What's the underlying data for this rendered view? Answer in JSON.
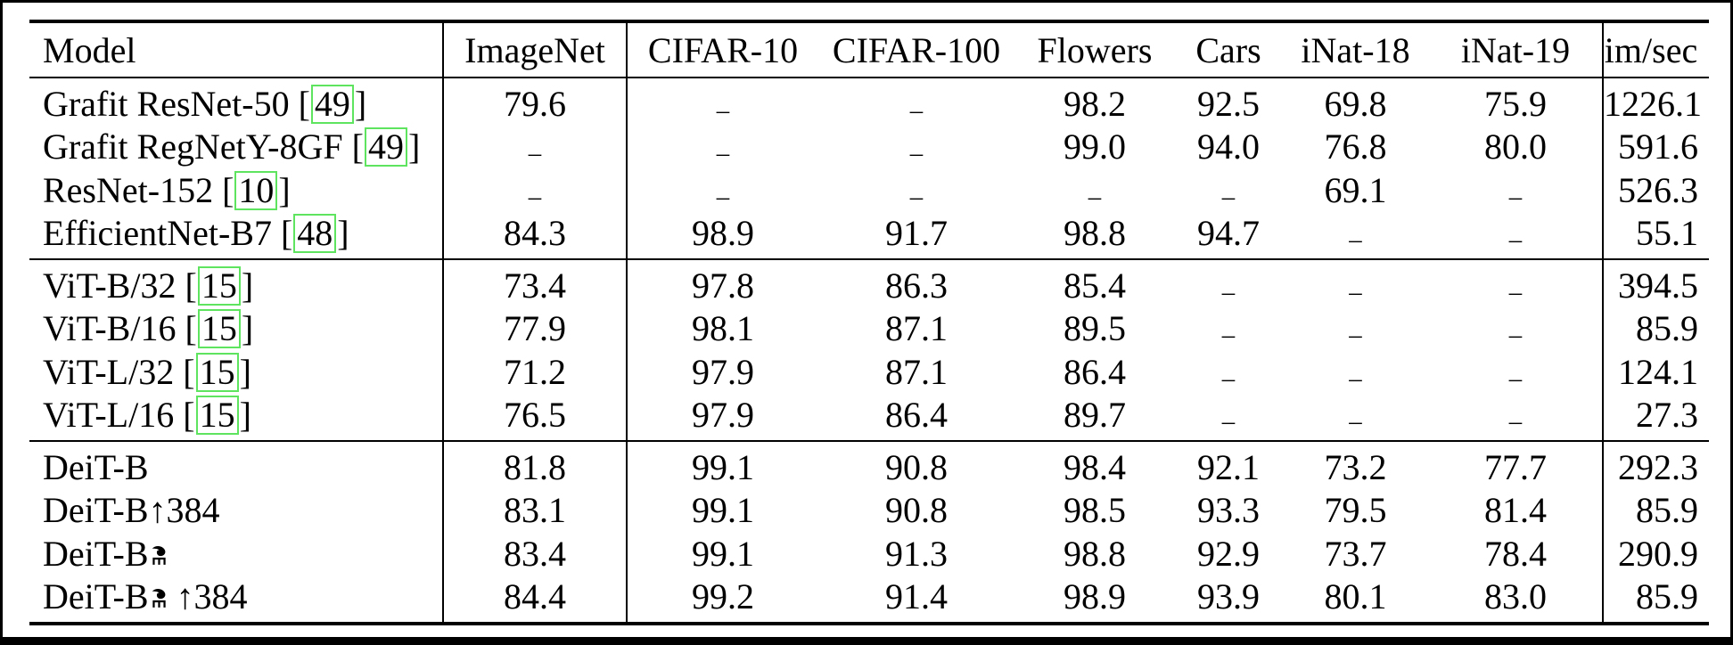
{
  "table": {
    "columns": [
      {
        "key": "model",
        "label": "Model"
      },
      {
        "key": "imagenet",
        "label": "ImageNet"
      },
      {
        "key": "cifar10",
        "label": "CIFAR-10"
      },
      {
        "key": "cifar100",
        "label": "CIFAR-100"
      },
      {
        "key": "flowers",
        "label": "Flowers"
      },
      {
        "key": "cars",
        "label": "Cars"
      },
      {
        "key": "inat18",
        "label": "iNat-18"
      },
      {
        "key": "inat19",
        "label": "iNat-19"
      },
      {
        "key": "imsec",
        "label": "im/sec"
      }
    ],
    "missing_marker": "–",
    "cite_box_color": "#5fe45f",
    "groups": [
      {
        "name": "convnets",
        "rows": [
          {
            "model": {
              "text": "Grafit ResNet-50",
              "cite": "49",
              "alembic": false,
              "suffix": ""
            },
            "values": [
              "79.6",
              "–",
              "–",
              "98.2",
              "92.5",
              "69.8",
              "75.9",
              "1226.1"
            ]
          },
          {
            "model": {
              "text": "Grafit RegNetY-8GF",
              "cite": "49",
              "alembic": false,
              "suffix": ""
            },
            "values": [
              "–",
              "–",
              "–",
              "99.0",
              "94.0",
              "76.8",
              "80.0",
              "591.6"
            ]
          },
          {
            "model": {
              "text": "ResNet-152",
              "cite": "10",
              "alembic": false,
              "suffix": ""
            },
            "values": [
              "–",
              "–",
              "–",
              "–",
              "–",
              "69.1",
              "–",
              "526.3"
            ]
          },
          {
            "model": {
              "text": "EfficientNet-B7",
              "cite": "48",
              "alembic": false,
              "suffix": ""
            },
            "values": [
              "84.3",
              "98.9",
              "91.7",
              "98.8",
              "94.7",
              "–",
              "–",
              "55.1"
            ]
          }
        ]
      },
      {
        "name": "vit",
        "rows": [
          {
            "model": {
              "text": "ViT-B/32",
              "cite": "15",
              "alembic": false,
              "suffix": ""
            },
            "values": [
              "73.4",
              "97.8",
              "86.3",
              "85.4",
              "–",
              "–",
              "–",
              "394.5"
            ]
          },
          {
            "model": {
              "text": "ViT-B/16",
              "cite": "15",
              "alembic": false,
              "suffix": ""
            },
            "values": [
              "77.9",
              "98.1",
              "87.1",
              "89.5",
              "–",
              "–",
              "–",
              "85.9"
            ]
          },
          {
            "model": {
              "text": "ViT-L/32",
              "cite": "15",
              "alembic": false,
              "suffix": ""
            },
            "values": [
              "71.2",
              "97.9",
              "87.1",
              "86.4",
              "–",
              "–",
              "–",
              "124.1"
            ]
          },
          {
            "model": {
              "text": "ViT-L/16",
              "cite": "15",
              "alembic": false,
              "suffix": ""
            },
            "values": [
              "76.5",
              "97.9",
              "86.4",
              "89.7",
              "–",
              "–",
              "–",
              "27.3"
            ]
          }
        ]
      },
      {
        "name": "deit",
        "rows": [
          {
            "model": {
              "text": "DeiT-B",
              "cite": null,
              "alembic": false,
              "suffix": ""
            },
            "values": [
              "81.8",
              "99.1",
              "90.8",
              "98.4",
              "92.1",
              "73.2",
              "77.7",
              "292.3"
            ]
          },
          {
            "model": {
              "text": "DeiT-B",
              "cite": null,
              "alembic": false,
              "suffix": "↑384"
            },
            "values": [
              "83.1",
              "99.1",
              "90.8",
              "98.5",
              "93.3",
              "79.5",
              "81.4",
              "85.9"
            ]
          },
          {
            "model": {
              "text": "DeiT-B",
              "cite": null,
              "alembic": true,
              "suffix": ""
            },
            "values": [
              "83.4",
              "99.1",
              "91.3",
              "98.8",
              "92.9",
              "73.7",
              "78.4",
              "290.9"
            ]
          },
          {
            "model": {
              "text": "DeiT-B",
              "cite": null,
              "alembic": true,
              "suffix": " ↑384"
            },
            "values": [
              "84.4",
              "99.2",
              "91.4",
              "98.9",
              "93.9",
              "80.1",
              "83.0",
              "85.9"
            ]
          }
        ]
      }
    ]
  }
}
